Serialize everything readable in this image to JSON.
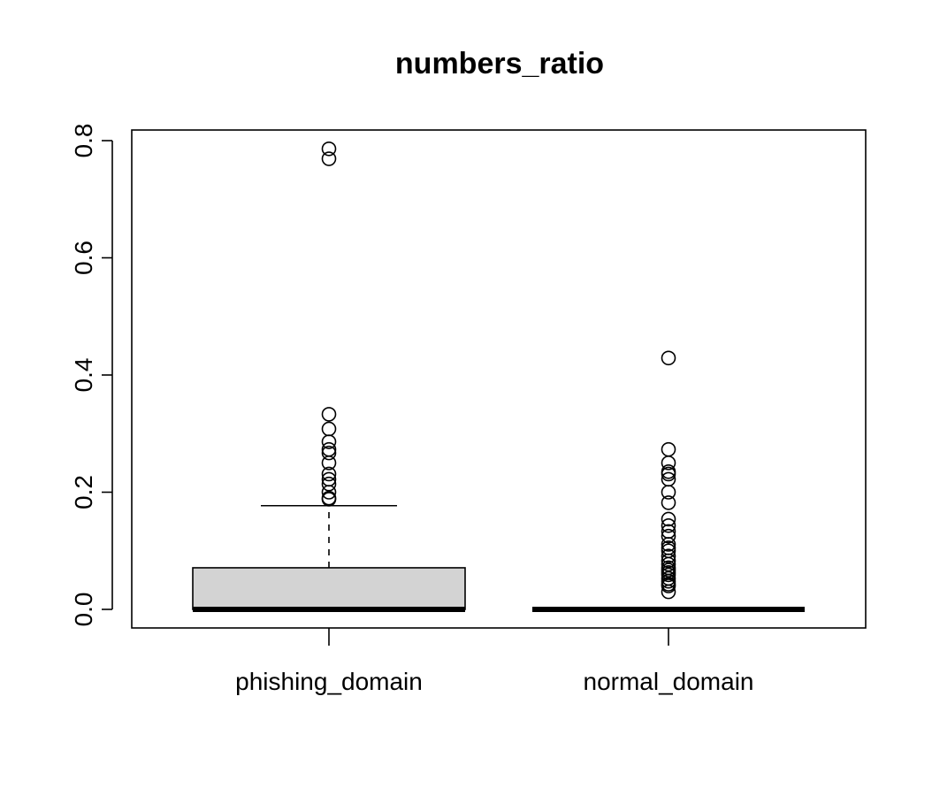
{
  "chart_data": {
    "type": "boxplot",
    "title": "numbers_ratio",
    "xlabel": "",
    "ylabel": "",
    "ylim": [
      0,
      0.8
    ],
    "y_ticks": [
      "0.0",
      "0.2",
      "0.4",
      "0.6",
      "0.8"
    ],
    "grid": false,
    "legend": "none",
    "colors": {
      "box_fill": "#d3d3d3",
      "stroke": "#000000"
    },
    "categories": [
      "phishing_domain",
      "normal_domain"
    ],
    "boxes": [
      {
        "name": "phishing_domain",
        "min": 0.0,
        "q1": 0.0,
        "median": 0.0,
        "q3": 0.071,
        "max": 0.177,
        "outliers": [
          0.786,
          0.769,
          0.333,
          0.308,
          0.286,
          0.273,
          0.267,
          0.25,
          0.231,
          0.222,
          0.214,
          0.2,
          0.19,
          0.188
        ]
      },
      {
        "name": "normal_domain",
        "min": 0.0,
        "q1": 0.0,
        "median": 0.0,
        "q3": 0.0,
        "max": 0.0,
        "outliers": [
          0.429,
          0.273,
          0.25,
          0.235,
          0.231,
          0.222,
          0.2,
          0.182,
          0.154,
          0.143,
          0.133,
          0.125,
          0.111,
          0.105,
          0.1,
          0.091,
          0.083,
          0.077,
          0.071,
          0.067,
          0.063,
          0.059,
          0.053,
          0.048,
          0.043,
          0.04,
          0.03
        ]
      }
    ]
  }
}
